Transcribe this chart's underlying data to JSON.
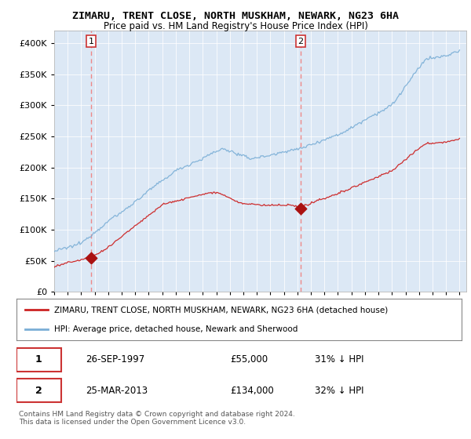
{
  "title": "ZIMARU, TRENT CLOSE, NORTH MUSKHAM, NEWARK, NG23 6HA",
  "subtitle": "Price paid vs. HM Land Registry's House Price Index (HPI)",
  "legend_line1": "ZIMARU, TRENT CLOSE, NORTH MUSKHAM, NEWARK, NG23 6HA (detached house)",
  "legend_line2": "HPI: Average price, detached house, Newark and Sherwood",
  "note": "Contains HM Land Registry data © Crown copyright and database right 2024.\nThis data is licensed under the Open Government Licence v3.0.",
  "purchase1_date": "26-SEP-1997",
  "purchase1_price": 55000,
  "purchase1_hpi_pct": "31% ↓ HPI",
  "purchase2_date": "25-MAR-2013",
  "purchase2_price": 134000,
  "purchase2_hpi_pct": "32% ↓ HPI",
  "hpi_color": "#7aaed6",
  "price_color": "#cc2222",
  "marker_color": "#aa1111",
  "vline_color": "#ee8888",
  "ylim_max": 420000,
  "ylim_min": 0,
  "background_color": "#ffffff",
  "plot_bg_color": "#dce8f5"
}
